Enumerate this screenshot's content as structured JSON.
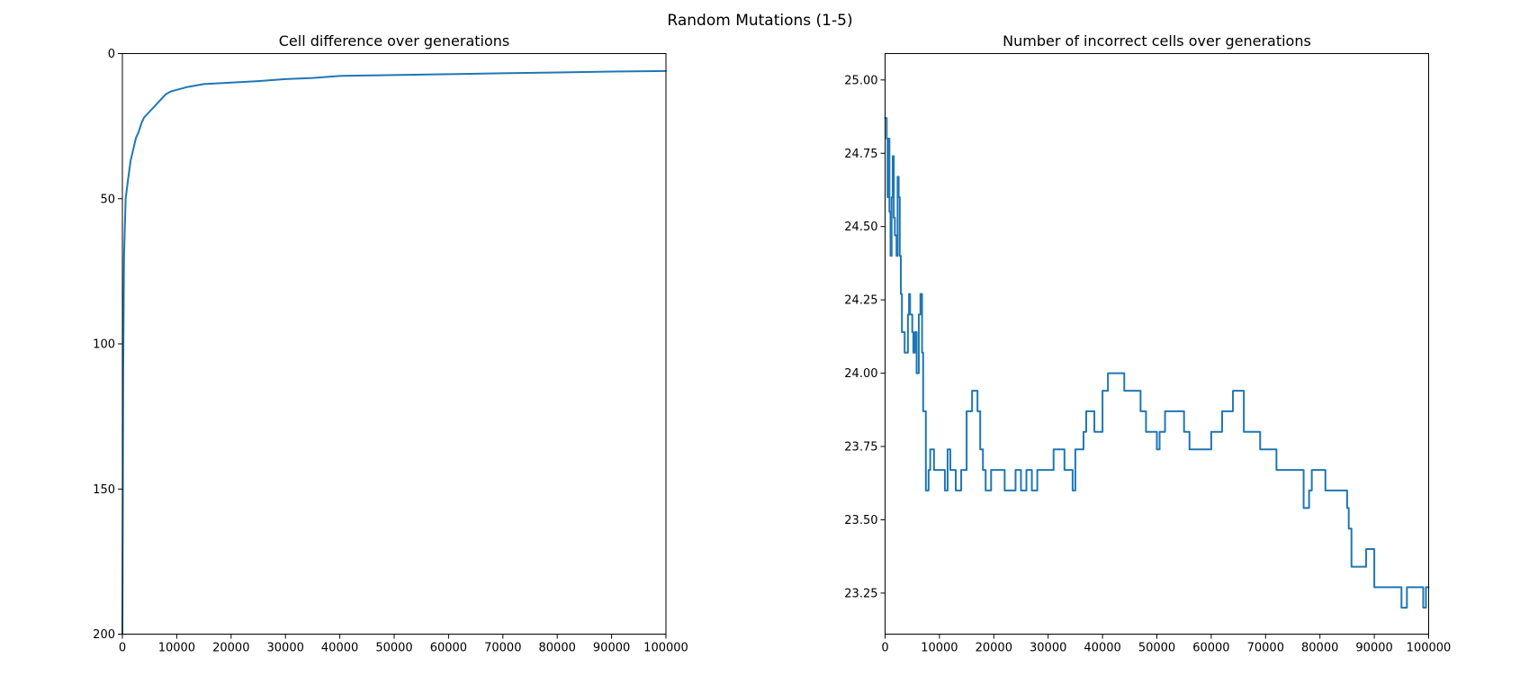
{
  "figure": {
    "suptitle": "Random Mutations (1-5)"
  },
  "colors": {
    "series": "#1f77b4",
    "axes": "#000000",
    "background": "#ffffff"
  },
  "chart_data": [
    {
      "type": "line",
      "title": "Cell difference over generations",
      "xlabel": "",
      "ylabel": "",
      "xlim": [
        0,
        100000
      ],
      "ylim": [
        0,
        200
      ],
      "y_inverted": true,
      "grid": false,
      "legend": "none",
      "xticks": [
        0,
        10000,
        20000,
        30000,
        40000,
        50000,
        60000,
        70000,
        80000,
        90000,
        100000
      ],
      "yticks": [
        0,
        50,
        100,
        150,
        200
      ],
      "series": [
        {
          "x": [
            0,
            150,
            300,
            600,
            1000,
            1500,
            2000,
            2500,
            3000,
            3500,
            4000,
            5000,
            6000,
            7000,
            8000,
            9000,
            10000,
            12000,
            15000,
            20000,
            25000,
            30000,
            35000,
            40000,
            50000,
            60000,
            70000,
            80000,
            90000,
            100000
          ],
          "values": [
            200,
            110,
            70,
            50,
            44,
            37,
            33,
            29,
            27,
            24,
            22,
            20,
            18,
            16,
            14,
            13,
            12.5,
            11.5,
            10.5,
            10,
            9.5,
            8.8,
            8.4,
            7.7,
            7.4,
            7.1,
            6.8,
            6.5,
            6.2,
            6.0
          ]
        }
      ]
    },
    {
      "type": "line",
      "title": "Number of incorrect cells over generations",
      "xlabel": "",
      "ylabel": "",
      "xlim": [
        0,
        100000
      ],
      "ylim": [
        23.11,
        25.09
      ],
      "grid": false,
      "legend": "none",
      "xticks": [
        0,
        10000,
        20000,
        30000,
        40000,
        50000,
        60000,
        70000,
        80000,
        90000,
        100000
      ],
      "yticks": [
        23.25,
        23.5,
        23.75,
        24.0,
        24.25,
        24.5,
        24.75,
        25.0
      ],
      "series": [
        {
          "step": "post",
          "x": [
            0,
            300,
            450,
            600,
            800,
            1000,
            1200,
            1400,
            1600,
            1800,
            2100,
            2300,
            2500,
            2700,
            2900,
            3100,
            3600,
            4200,
            4400,
            4600,
            5000,
            5200,
            5500,
            5800,
            6200,
            6500,
            6800,
            7000,
            7200,
            7500,
            8000,
            8300,
            8600,
            9000,
            11000,
            11500,
            12000,
            12500,
            13000,
            14000,
            15000,
            15500,
            16000,
            17000,
            17500,
            18000,
            18500,
            19000,
            19500,
            22000,
            22300,
            24000,
            25000,
            26000,
            27000,
            28000,
            31000,
            33000,
            34500,
            35000,
            36500,
            37000,
            38500,
            40000,
            41000,
            44000,
            47000,
            48000,
            50000,
            50500,
            51500,
            52000,
            55000,
            56000,
            57000,
            60000,
            62000,
            64000,
            66000,
            69000,
            72000,
            77000,
            78000,
            78500,
            81000,
            84000,
            85000,
            85300,
            85800,
            86500,
            88500,
            90000,
            95000,
            96000,
            99000,
            99500,
            100000
          ],
          "values": [
            24.87,
            24.8,
            24.6,
            24.8,
            24.55,
            24.4,
            24.6,
            24.74,
            24.53,
            24.47,
            24.4,
            24.67,
            24.6,
            24.4,
            24.27,
            24.14,
            24.07,
            24.2,
            24.27,
            24.2,
            24.14,
            24.07,
            24.14,
            24.0,
            24.2,
            24.27,
            24.07,
            23.87,
            23.87,
            23.6,
            23.67,
            23.74,
            23.74,
            23.67,
            23.6,
            23.74,
            23.67,
            23.67,
            23.6,
            23.67,
            23.87,
            23.87,
            23.94,
            23.87,
            23.74,
            23.67,
            23.6,
            23.6,
            23.67,
            23.6,
            23.6,
            23.67,
            23.6,
            23.67,
            23.6,
            23.67,
            23.74,
            23.67,
            23.6,
            23.74,
            23.8,
            23.87,
            23.8,
            23.94,
            24.0,
            23.94,
            23.87,
            23.8,
            23.74,
            23.8,
            23.87,
            23.87,
            23.8,
            23.74,
            23.74,
            23.8,
            23.87,
            23.94,
            23.8,
            23.74,
            23.67,
            23.54,
            23.6,
            23.67,
            23.6,
            23.6,
            23.54,
            23.47,
            23.34,
            23.34,
            23.4,
            23.27,
            23.2,
            23.27,
            23.2,
            23.27,
            23.27
          ]
        }
      ]
    }
  ]
}
